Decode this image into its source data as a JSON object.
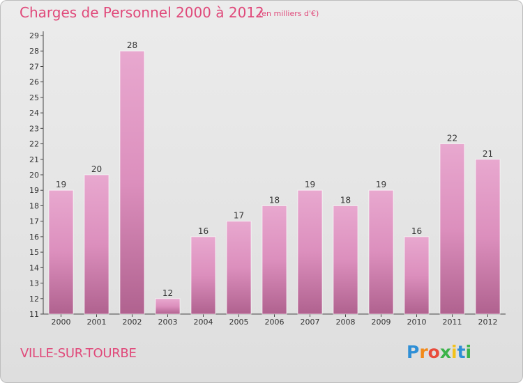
{
  "chart_data": {
    "type": "bar",
    "title": "Charges de Personnel 2000 à 2012",
    "subtitle": "(en milliers d'€)",
    "categories": [
      "2000",
      "2001",
      "2002",
      "2003",
      "2004",
      "2005",
      "2006",
      "2007",
      "2008",
      "2009",
      "2010",
      "2011",
      "2012"
    ],
    "values": [
      19,
      20,
      28,
      12,
      16,
      17,
      18,
      19,
      18,
      19,
      16,
      22,
      21
    ],
    "ylim": [
      11,
      29
    ],
    "yticks": [
      11,
      12,
      13,
      14,
      15,
      16,
      17,
      18,
      19,
      20,
      21,
      22,
      23,
      24,
      25,
      26,
      27,
      28,
      29
    ],
    "grid": false,
    "bar_color": "#dc8fbd",
    "bar_color_top": "#e8a8cf",
    "bar_color_bottom": "#b0628f",
    "title_color": "#e0497a"
  },
  "place_name": "VILLE-SUR-TOURBE",
  "brand": {
    "letters": [
      "P",
      "r",
      "o",
      "x",
      "i",
      "t",
      "i"
    ],
    "colors": [
      "#2f8fd6",
      "#f28a1a",
      "#e94b3c",
      "#3bb34a",
      "#f2c21a",
      "#2f8fd6",
      "#3bb34a"
    ]
  }
}
